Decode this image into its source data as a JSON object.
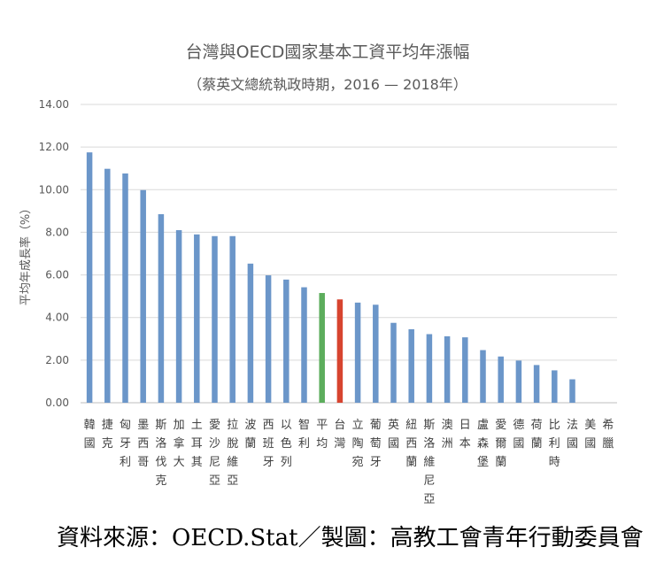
{
  "chart_data": {
    "type": "bar",
    "title": "台灣與OECD國家基本工資平均年漲幅",
    "subtitle": "（蔡英文總統執政時期，2016 — 2018年）",
    "ylabel": "平均年成長率（%）",
    "xlabel": "",
    "ylim": [
      0,
      14
    ],
    "yticks": [
      "0.00",
      "2.00",
      "4.00",
      "6.00",
      "8.00",
      "10.00",
      "12.00",
      "14.00"
    ],
    "grid": true,
    "categories": [
      "韓國",
      "捷克",
      "匈牙利",
      "墨西哥",
      "斯洛伐克",
      "加拿大",
      "土耳其",
      "愛沙尼亞",
      "拉脫維亞",
      "波蘭",
      "西班牙",
      "以色列",
      "智利",
      "平均",
      "台灣",
      "立陶宛",
      "葡萄牙",
      "英國",
      "紐西蘭",
      "斯洛維尼亞",
      "澳洲",
      "日本",
      "盧森堡",
      "愛爾蘭",
      "德國",
      "荷蘭",
      "比利時",
      "法國",
      "美國",
      "希臘"
    ],
    "values": [
      11.75,
      10.98,
      10.76,
      9.98,
      8.85,
      8.1,
      7.9,
      7.82,
      7.82,
      6.53,
      5.98,
      5.78,
      5.42,
      5.15,
      4.85,
      4.7,
      4.6,
      3.75,
      3.45,
      3.22,
      3.12,
      3.07,
      2.47,
      2.17,
      1.98,
      1.77,
      1.52,
      1.1,
      0,
      0
    ],
    "colors": {
      "default": "#6b96c9",
      "平均": "#5cad5c",
      "台灣": "#d7442f"
    }
  },
  "footer": {
    "source": "資料來源：OECD.Stat／製圖：高教工會青年行動委員會"
  }
}
